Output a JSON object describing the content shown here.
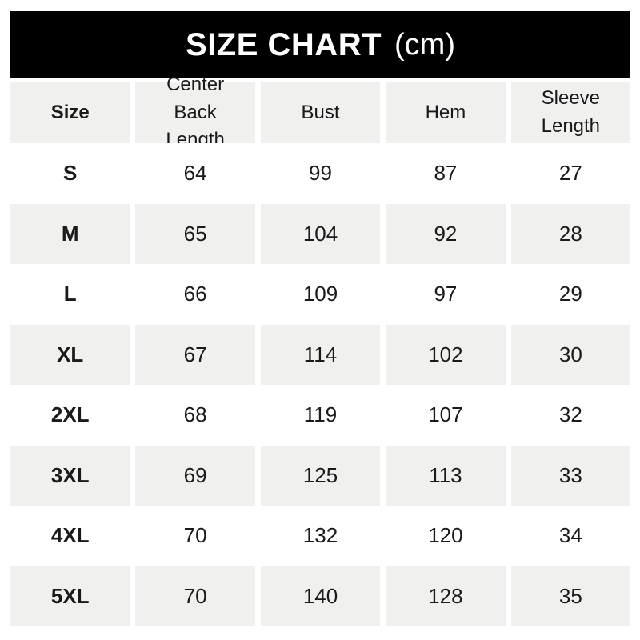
{
  "title": {
    "main": "SIZE CHART",
    "unit": "(cm)"
  },
  "table": {
    "headers": [
      "Size",
      "Center Back Length",
      "Bust",
      "Hem",
      "Sleeve Length"
    ],
    "rows": [
      {
        "cells": [
          "S",
          "64",
          "99",
          "87",
          "27"
        ]
      },
      {
        "cells": [
          "M",
          "65",
          "104",
          "92",
          "28"
        ]
      },
      {
        "cells": [
          "L",
          "66",
          "109",
          "97",
          "29"
        ]
      },
      {
        "cells": [
          "XL",
          "67",
          "114",
          "102",
          "30"
        ]
      },
      {
        "cells": [
          "2XL",
          "68",
          "119",
          "107",
          "32"
        ]
      },
      {
        "cells": [
          "3XL",
          "69",
          "125",
          "113",
          "33"
        ]
      },
      {
        "cells": [
          "4XL",
          "70",
          "132",
          "120",
          "34"
        ]
      },
      {
        "cells": [
          "5XL",
          "70",
          "140",
          "128",
          "35"
        ]
      }
    ]
  },
  "colors": {
    "title_bg": "#000000",
    "title_text": "#ffffff",
    "alt_row_bg": "#f0f0ef",
    "text": "#1a1a1a",
    "background": "#ffffff"
  },
  "chart_data": {
    "type": "table",
    "title": "SIZE CHART (cm)",
    "unit": "cm",
    "columns": [
      "Size",
      "Center Back Length",
      "Bust",
      "Hem",
      "Sleeve Length"
    ],
    "rows": [
      [
        "S",
        64,
        99,
        87,
        27
      ],
      [
        "M",
        65,
        104,
        92,
        28
      ],
      [
        "L",
        66,
        109,
        97,
        29
      ],
      [
        "XL",
        67,
        114,
        102,
        30
      ],
      [
        "2XL",
        68,
        119,
        107,
        32
      ],
      [
        "3XL",
        69,
        125,
        113,
        33
      ],
      [
        "4XL",
        70,
        132,
        120,
        34
      ],
      [
        "5XL",
        70,
        140,
        128,
        35
      ]
    ],
    "layout": {
      "header_row": true,
      "zebra_striping": true,
      "alt_rows": [
        "M",
        "XL",
        "3XL",
        "5XL"
      ]
    }
  }
}
